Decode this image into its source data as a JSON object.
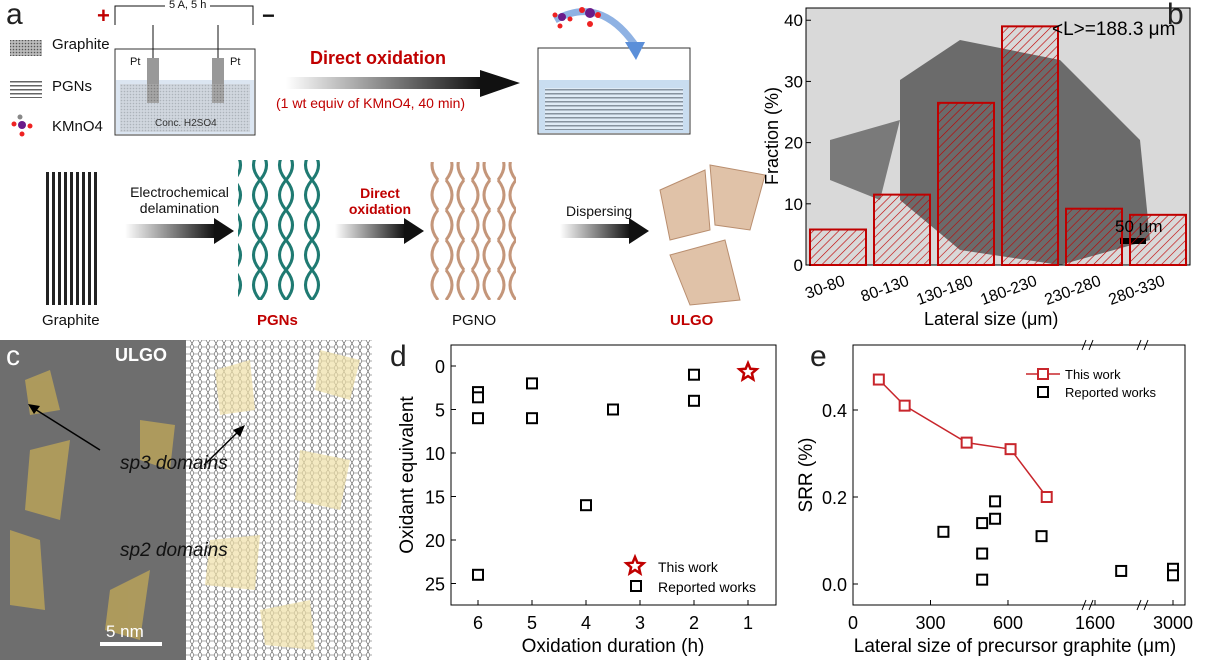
{
  "panel_a": {
    "label": "a",
    "legend": [
      "Graphite",
      "PGNs",
      "KMnO4"
    ],
    "cell": {
      "power": "5 A, 5 h",
      "plus": "+",
      "minus": "−",
      "electrode_left": "Pt",
      "electrode_right": "Pt",
      "electrolyte": "Conc. H2SO4"
    },
    "top_arrow": {
      "title": "Direct oxidation",
      "subtitle": "(1 wt equiv of KMnO4, 40 min)"
    },
    "steps": [
      {
        "arrow": "Electrochemical delamination"
      },
      {
        "arrow": "Direct oxidation"
      },
      {
        "arrow": "Dispersing"
      }
    ],
    "stages": [
      "Graphite",
      "PGNs",
      "PGNO",
      "ULGO"
    ]
  },
  "panel_c": {
    "label": "c",
    "title": "ULGO",
    "sp3": "sp3 domains",
    "sp2": "sp2 domains",
    "scale": "5 nm"
  },
  "chart_data": [
    {
      "panel": "b",
      "type": "bar",
      "title": "<L>=188.3 μm",
      "scale_bar": "50 μm",
      "categories": [
        "30-80",
        "80-130",
        "130-180",
        "180-230",
        "230-280",
        "280-330"
      ],
      "values": [
        5.8,
        11.5,
        26.5,
        39,
        9.2,
        8.2
      ],
      "xlabel": "Lateral size (μm)",
      "ylabel": "Fraction (%)",
      "ylim": [
        0,
        42
      ],
      "yticks": [
        0,
        10,
        20,
        30,
        40
      ]
    },
    {
      "panel": "d",
      "type": "scatter",
      "xlabel": "Oxidation duration (h)",
      "ylabel": "Oxidant equivalent",
      "xlim": [
        6.5,
        0.5
      ],
      "ylim": [
        27.5,
        -2.5
      ],
      "xticks": [
        6,
        5,
        4,
        3,
        2,
        1
      ],
      "yticks": [
        0,
        5,
        10,
        15,
        20,
        25
      ],
      "series": [
        {
          "name": "This work",
          "color": "#c00000",
          "marker": "star",
          "points": [
            [
              1,
              0.7
            ]
          ]
        },
        {
          "name": "Reported works",
          "color": "#000000",
          "marker": "square",
          "points": [
            [
              6,
              3
            ],
            [
              6,
              3.6
            ],
            [
              6,
              6
            ],
            [
              6,
              24
            ],
            [
              5,
              2
            ],
            [
              5,
              6
            ],
            [
              3.5,
              5
            ],
            [
              4,
              16
            ],
            [
              2,
              1
            ],
            [
              2,
              4
            ]
          ]
        }
      ]
    },
    {
      "panel": "e",
      "type": "line",
      "xlabel": "Lateral size of precursor graphite (μm)",
      "ylabel": "SRR (%)",
      "xticks": [
        "0",
        "300",
        "600",
        "1600",
        "3000"
      ],
      "yticks": [
        "0.0",
        "0.2",
        "0.4"
      ],
      "ylim": [
        -0.05,
        0.55
      ],
      "series": [
        {
          "name": "This work",
          "color": "#c8262c",
          "marker": "square-line",
          "points": [
            [
              100,
              0.47
            ],
            [
              200,
              0.41
            ],
            [
              440,
              0.325
            ],
            [
              610,
              0.31
            ],
            [
              750,
              0.2
            ]
          ]
        },
        {
          "name": "Reported works",
          "color": "#000000",
          "marker": "square",
          "points": [
            [
              350,
              0.12
            ],
            [
              500,
              0.14
            ],
            [
              500,
              0.07
            ],
            [
              500,
              0.01
            ],
            [
              550,
              0.19
            ],
            [
              550,
              0.15
            ],
            [
              730,
              0.11
            ],
            [
              2070,
              0.03
            ],
            [
              3000,
              0.035
            ],
            [
              3000,
              0.02
            ]
          ]
        }
      ]
    }
  ]
}
